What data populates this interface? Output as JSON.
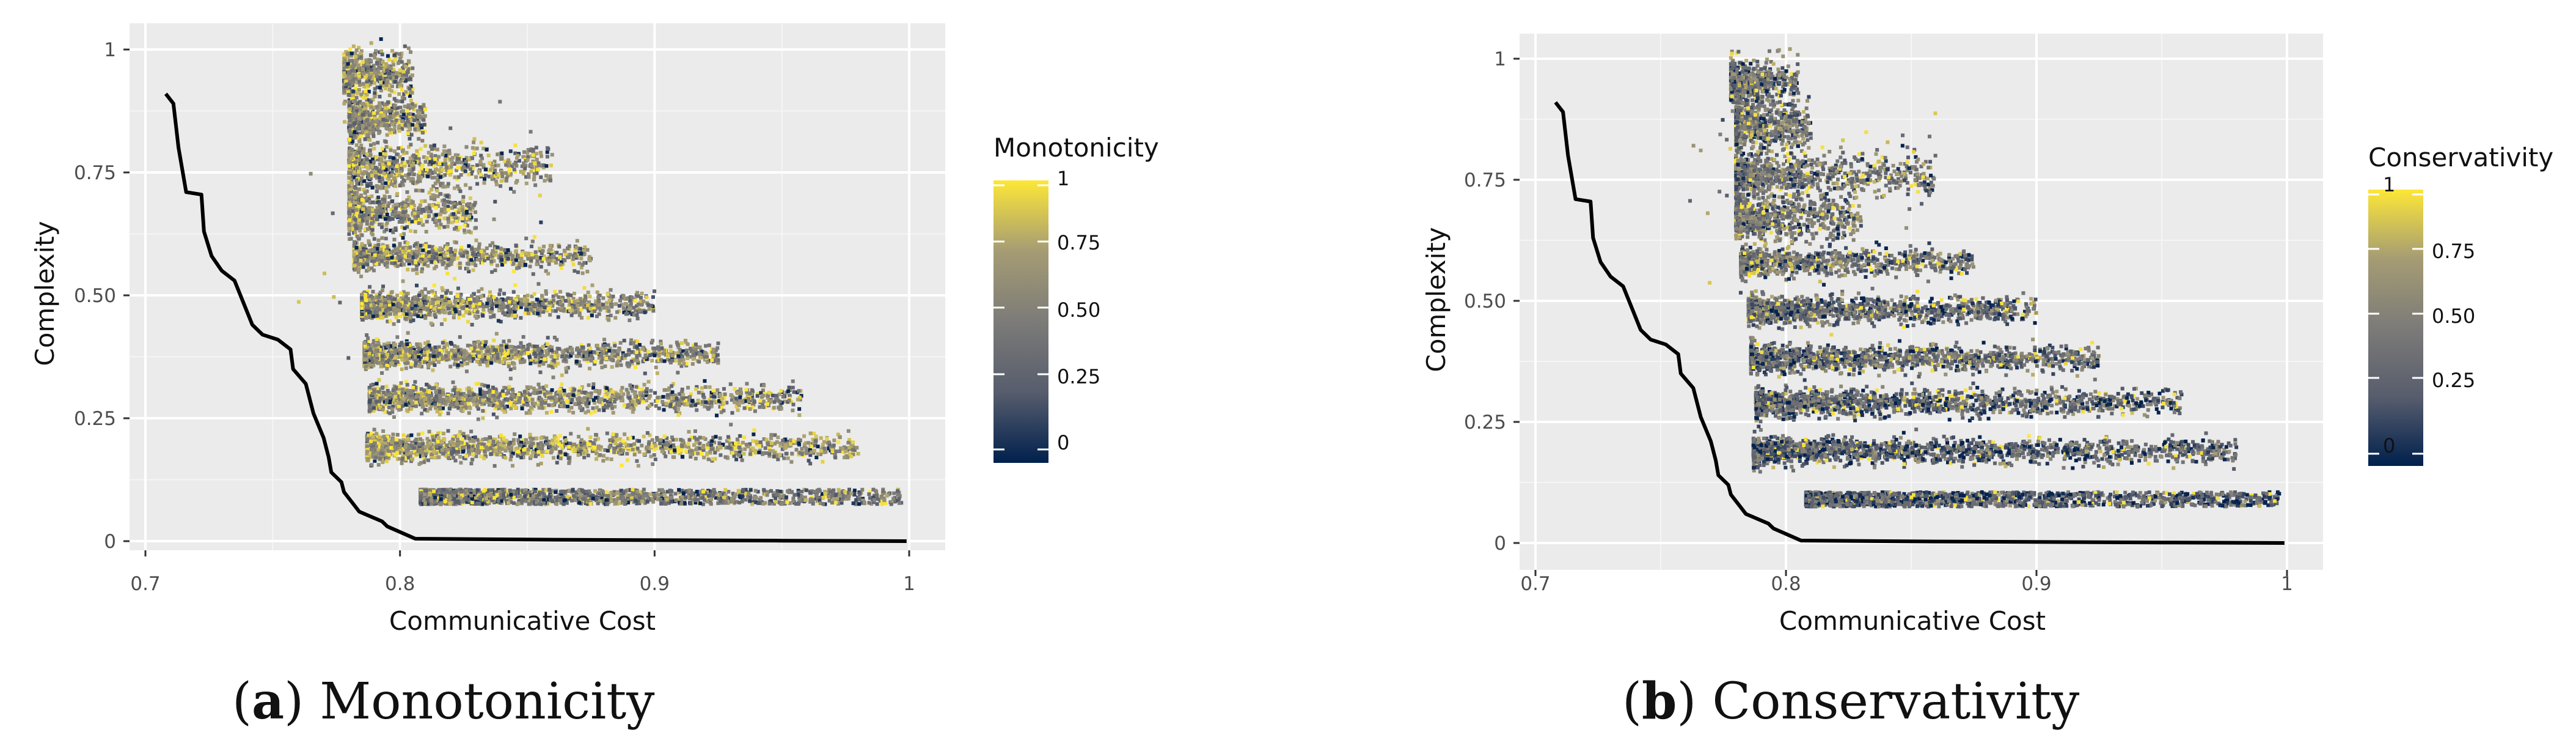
{
  "chart_data": [
    {
      "type": "scatter",
      "xlabel": "Communicative Cost",
      "ylabel": "Complexity",
      "xlim": [
        0.7,
        1.0
      ],
      "ylim": [
        0.0,
        1.0
      ],
      "x_ticks": [
        "0.7",
        "0.8",
        "0.9",
        "1"
      ],
      "y_ticks": [
        "0",
        "0.25",
        "0.50",
        "0.75",
        "1"
      ],
      "x_tick_values": [
        0.7,
        0.8,
        0.9,
        1.0
      ],
      "y_tick_values": [
        0.0,
        0.25,
        0.5,
        0.75,
        1.0
      ],
      "grid": true,
      "color_scale": {
        "title": "Monotonicity",
        "labels": [
          "1",
          "0.75",
          "0.50",
          "0.25",
          "0"
        ],
        "values": [
          1,
          0.75,
          0.5,
          0.25,
          0
        ],
        "colors": [
          "#00204d",
          "#575d6d",
          "#7c7b78",
          "#a59c74",
          "#fde737"
        ]
      },
      "legend_position": "right",
      "caption": {
        "letter": "a",
        "text": "Monotonicity"
      },
      "pareto_frontier": {
        "x": [
          0.708,
          0.711,
          0.713,
          0.716,
          0.722,
          0.723,
          0.726,
          0.73,
          0.735,
          0.742,
          0.746,
          0.752,
          0.757,
          0.758,
          0.763,
          0.766,
          0.77,
          0.772,
          0.773,
          0.777,
          0.778,
          0.781,
          0.784,
          0.793,
          0.795,
          0.806,
          0.86,
          0.95,
          0.999
        ],
        "y": [
          0.91,
          0.89,
          0.8,
          0.71,
          0.705,
          0.63,
          0.58,
          0.55,
          0.53,
          0.44,
          0.42,
          0.41,
          0.39,
          0.35,
          0.32,
          0.26,
          0.21,
          0.17,
          0.14,
          0.12,
          0.1,
          0.08,
          0.06,
          0.04,
          0.03,
          0.005,
          0.003,
          0.001,
          0.0
        ]
      },
      "point_bands": [
        {
          "y": 0.09,
          "x_min": 0.808,
          "x_max": 0.997,
          "mean": 0.48
        },
        {
          "y": 0.19,
          "x_min": 0.787,
          "x_max": 0.98,
          "mean": 0.65
        },
        {
          "y": 0.29,
          "x_min": 0.788,
          "x_max": 0.958,
          "mean": 0.6
        },
        {
          "y": 0.38,
          "x_min": 0.786,
          "x_max": 0.925,
          "mean": 0.6
        },
        {
          "y": 0.48,
          "x_min": 0.785,
          "x_max": 0.9,
          "mean": 0.58
        },
        {
          "y": 0.58,
          "x_min": 0.782,
          "x_max": 0.875,
          "mean": 0.6
        },
        {
          "y": 0.67,
          "x_min": 0.78,
          "x_max": 0.83,
          "mean": 0.62
        },
        {
          "y": 0.76,
          "x_min": 0.78,
          "x_max": 0.86,
          "mean": 0.63
        },
        {
          "y": 0.86,
          "x_min": 0.78,
          "x_max": 0.81,
          "mean": 0.6
        },
        {
          "y": 0.95,
          "x_min": 0.778,
          "x_max": 0.805,
          "mean": 0.6
        }
      ]
    },
    {
      "type": "scatter",
      "xlabel": "Communicative Cost",
      "ylabel": "Complexity",
      "xlim": [
        0.7,
        1.0
      ],
      "ylim": [
        0.0,
        1.0
      ],
      "x_ticks": [
        "0.7",
        "0.8",
        "0.9",
        "1"
      ],
      "y_ticks": [
        "0",
        "0.25",
        "0.50",
        "0.75",
        "1"
      ],
      "x_tick_values": [
        0.7,
        0.8,
        0.9,
        1.0
      ],
      "y_tick_values": [
        0.0,
        0.25,
        0.5,
        0.75,
        1.0
      ],
      "grid": true,
      "color_scale": {
        "title": "Conservativity",
        "labels": [
          "1",
          "0.75",
          "0.50",
          "0.25",
          "0"
        ],
        "values": [
          1,
          0.75,
          0.5,
          0.25,
          0
        ],
        "colors": [
          "#00204d",
          "#575d6d",
          "#7c7b78",
          "#a59c74",
          "#fde737"
        ]
      },
      "legend_position": "right",
      "caption": {
        "letter": "b",
        "text": "Conservativity"
      },
      "pareto_frontier": {
        "x": [
          0.708,
          0.711,
          0.713,
          0.716,
          0.722,
          0.723,
          0.726,
          0.73,
          0.735,
          0.742,
          0.746,
          0.752,
          0.757,
          0.758,
          0.763,
          0.766,
          0.77,
          0.772,
          0.773,
          0.777,
          0.778,
          0.781,
          0.784,
          0.793,
          0.795,
          0.806,
          0.86,
          0.95,
          0.999
        ],
        "y": [
          0.91,
          0.89,
          0.8,
          0.71,
          0.705,
          0.63,
          0.58,
          0.55,
          0.53,
          0.44,
          0.42,
          0.41,
          0.39,
          0.35,
          0.32,
          0.26,
          0.21,
          0.17,
          0.14,
          0.12,
          0.1,
          0.08,
          0.06,
          0.04,
          0.03,
          0.005,
          0.003,
          0.001,
          0.0
        ]
      },
      "point_bands": [
        {
          "y": 0.09,
          "x_min": 0.808,
          "x_max": 0.997,
          "mean": 0.3
        },
        {
          "y": 0.19,
          "x_min": 0.787,
          "x_max": 0.98,
          "mean": 0.32
        },
        {
          "y": 0.29,
          "x_min": 0.788,
          "x_max": 0.958,
          "mean": 0.35
        },
        {
          "y": 0.38,
          "x_min": 0.786,
          "x_max": 0.925,
          "mean": 0.4
        },
        {
          "y": 0.48,
          "x_min": 0.785,
          "x_max": 0.9,
          "mean": 0.38
        },
        {
          "y": 0.58,
          "x_min": 0.782,
          "x_max": 0.875,
          "mean": 0.45
        },
        {
          "y": 0.67,
          "x_min": 0.78,
          "x_max": 0.83,
          "mean": 0.45
        },
        {
          "y": 0.76,
          "x_min": 0.78,
          "x_max": 0.86,
          "mean": 0.45
        },
        {
          "y": 0.86,
          "x_min": 0.78,
          "x_max": 0.81,
          "mean": 0.45
        },
        {
          "y": 0.95,
          "x_min": 0.778,
          "x_max": 0.805,
          "mean": 0.45
        }
      ]
    }
  ]
}
